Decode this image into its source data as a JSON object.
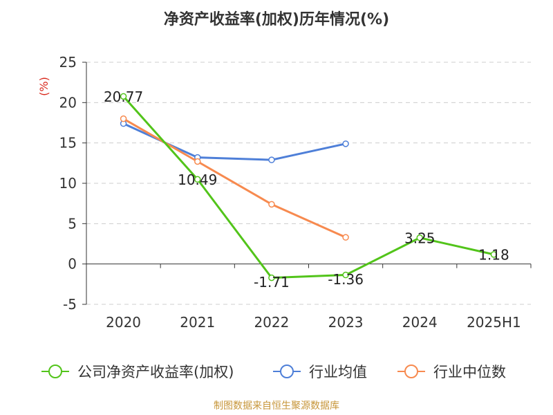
{
  "chart_data": {
    "type": "line",
    "title": "净资产收益率(加权)历年情况(%)",
    "ylabel": "(%)",
    "xlabel": "",
    "categories": [
      "2020",
      "2021",
      "2022",
      "2023",
      "2024",
      "2025H1"
    ],
    "ylim": [
      -5,
      25
    ],
    "yticks": [
      -5,
      0,
      5,
      10,
      15,
      20,
      25
    ],
    "grid": true,
    "legend_position": "bottom",
    "series": [
      {
        "name": "公司净资产收益率(加权)",
        "color": "#52c41a",
        "values": [
          20.77,
          10.49,
          -1.71,
          -1.36,
          3.25,
          1.18
        ],
        "show_labels": true
      },
      {
        "name": "行业均值",
        "color": "#4e7fd8",
        "values": [
          17.4,
          13.2,
          12.9,
          14.9,
          null,
          null
        ],
        "show_labels": false
      },
      {
        "name": "行业中位数",
        "color": "#f78a4f",
        "values": [
          18.0,
          12.7,
          7.4,
          3.3,
          null,
          null
        ],
        "show_labels": false
      }
    ]
  },
  "source": "制图数据来自恒生聚源数据库"
}
